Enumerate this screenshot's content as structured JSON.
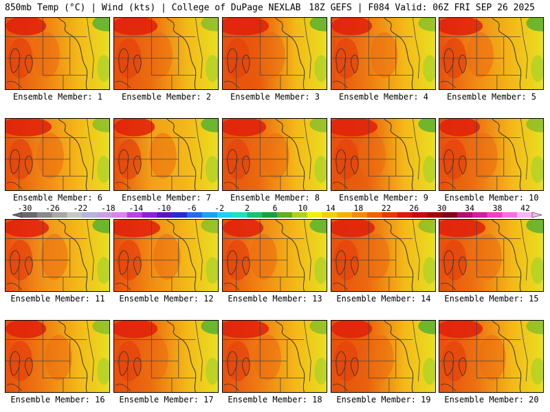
{
  "header": {
    "left": "850mb Temp (°C) | Wind (kts) | College of DuPage NEXLAB",
    "right": "18Z GEFS | F084 Valid: 06Z FRI SEP 26 2025"
  },
  "panels": [
    {
      "label": "Ensemble Member: 1",
      "tint": "#ee7a12"
    },
    {
      "label": "Ensemble Member: 2",
      "tint": "#ea6c10"
    },
    {
      "label": "Ensemble Member: 3",
      "tint": "#e85a0c"
    },
    {
      "label": "Ensemble Member: 4",
      "tint": "#ee7a12"
    },
    {
      "label": "Ensemble Member: 5",
      "tint": "#f08a14"
    },
    {
      "label": "Ensemble Member: 6",
      "tint": "#ef8514"
    },
    {
      "label": "Ensemble Member: 7",
      "tint": "#f0a018"
    },
    {
      "label": "Ensemble Member: 8",
      "tint": "#ea6a10"
    },
    {
      "label": "Ensemble Member: 9",
      "tint": "#e8620e"
    },
    {
      "label": "Ensemble Member: 10",
      "tint": "#ec7012"
    },
    {
      "label": "Ensemble Member: 11",
      "tint": "#f0901a"
    },
    {
      "label": "Ensemble Member: 12",
      "tint": "#f08a14"
    },
    {
      "label": "Ensemble Member: 13",
      "tint": "#ef8514"
    },
    {
      "label": "Ensemble Member: 14",
      "tint": "#ea6a10"
    },
    {
      "label": "Ensemble Member: 15",
      "tint": "#ec7212"
    },
    {
      "label": "Ensemble Member: 16",
      "tint": "#ee7a12"
    },
    {
      "label": "Ensemble Member: 17",
      "tint": "#ea6c10"
    },
    {
      "label": "Ensemble Member: 18",
      "tint": "#ee7c14"
    },
    {
      "label": "Ensemble Member: 19",
      "tint": "#e8620e"
    },
    {
      "label": "Ensemble Member: 20",
      "tint": "#ec7012"
    }
  ],
  "colorbar": {
    "ticks": [
      "-30",
      "-26",
      "-22",
      "-18",
      "-14",
      "-10",
      "-6",
      "-2",
      "2",
      "6",
      "10",
      "14",
      "18",
      "22",
      "26",
      "30",
      "34",
      "38",
      "42"
    ],
    "colors": [
      "#6a6a6a",
      "#8a8a8a",
      "#a8a8a8",
      "#c6c6c6",
      "#b4b4dc",
      "#c8a0e6",
      "#e080ee",
      "#c040e0",
      "#9020d0",
      "#5a18b8",
      "#2a2ad0",
      "#2a6ae8",
      "#1ea0f0",
      "#20d0f0",
      "#20e0c0",
      "#20c070",
      "#18a040",
      "#60b020",
      "#b0d020",
      "#f0f000",
      "#f0d000",
      "#f8b000",
      "#f08c00",
      "#ec6400",
      "#e43c00",
      "#dc1a0a",
      "#c40a10",
      "#a00808",
      "#800818",
      "#b01070",
      "#d020a0",
      "#f040c0",
      "#f870e0",
      "#f8b8f0"
    ]
  }
}
